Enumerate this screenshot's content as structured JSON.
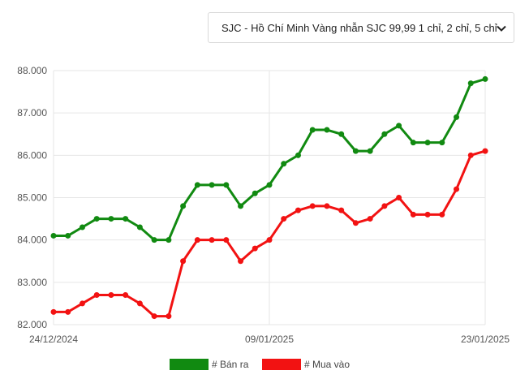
{
  "dropdown": {
    "selected": "SJC - Hồ Chí Minh Vàng nhẫn SJC 99,99 1 chỉ, 2 chỉ, 5 chỉ",
    "icon": "chevron-down-icon"
  },
  "chart_data": {
    "type": "line",
    "x_tick_labels": [
      "24/12/2024",
      "09/01/2025",
      "23/01/2025"
    ],
    "y_tick_labels": [
      "82.000",
      "83.000",
      "84.000",
      "85.000",
      "86.000",
      "87.000",
      "88.000"
    ],
    "ylim": [
      82000,
      88000
    ],
    "grid": true,
    "legend_position": "bottom",
    "series": [
      {
        "name": "# Bán ra",
        "color": "#118a11",
        "values": [
          84100,
          84100,
          84300,
          84500,
          84500,
          84500,
          84300,
          84000,
          84000,
          84800,
          85300,
          85300,
          85300,
          84800,
          85100,
          85300,
          85800,
          86000,
          86600,
          86600,
          86500,
          86100,
          86100,
          86500,
          86700,
          86300,
          86300,
          86300,
          86900,
          87700,
          87800
        ]
      },
      {
        "name": "# Mua vào",
        "color": "#f21212",
        "values": [
          82300,
          82300,
          82500,
          82700,
          82700,
          82700,
          82500,
          82200,
          82200,
          83500,
          84000,
          84000,
          84000,
          83500,
          83800,
          84000,
          84500,
          84700,
          84800,
          84800,
          84700,
          84400,
          84500,
          84800,
          85000,
          84600,
          84600,
          84600,
          85200,
          86000,
          86100
        ]
      }
    ]
  }
}
